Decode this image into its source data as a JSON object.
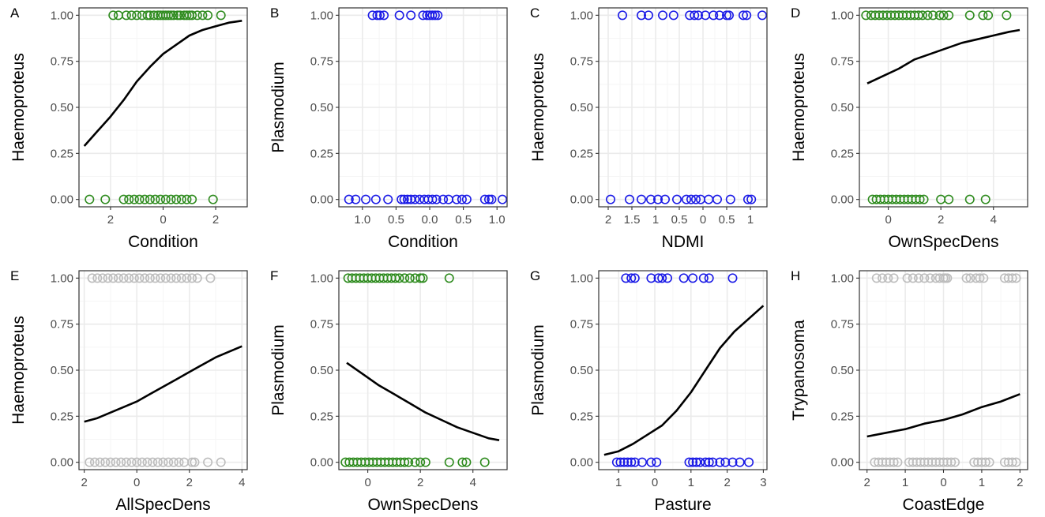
{
  "figure": {
    "colors": {
      "green": "#2e8b1e",
      "blue": "#1a1ae6",
      "grey": "#bdbdbd",
      "curve": "#000000",
      "grid_major": "#ebebeb",
      "grid_minor": "#f5f5f5",
      "border": "#333333"
    }
  },
  "chart_data": [
    {
      "panel": "A",
      "type": "scatter",
      "xlabel": "Condition",
      "ylabel": "Haemoproteus",
      "xlim": [
        -3.2,
        3.2
      ],
      "ylim": [
        -0.04,
        1.04
      ],
      "xticks": [
        -2,
        0,
        2
      ],
      "xtick_labels": [
        "2",
        "0",
        "2"
      ],
      "yticks": [
        0,
        0.25,
        0.5,
        0.75,
        1
      ],
      "ytick_labels": [
        "0.00",
        "0.25",
        "0.50",
        "0.75",
        "1.00"
      ],
      "point_color": "green",
      "points_y1": [
        -1.9,
        -1.7,
        -1.4,
        -1.2,
        -1.0,
        -0.8,
        -0.6,
        -0.5,
        -0.35,
        -0.2,
        -0.1,
        0.0,
        0.1,
        0.2,
        0.3,
        0.4,
        0.55,
        0.65,
        0.8,
        0.9,
        1.0,
        1.1,
        1.3,
        1.5,
        1.7,
        2.2
      ],
      "points_y0": [
        -2.8,
        -2.2,
        -1.5,
        -1.3,
        -1.1,
        -0.9,
        -0.7,
        -0.5,
        -0.3,
        -0.1,
        0.1,
        0.3,
        0.5,
        0.7,
        0.9,
        1.1,
        1.9
      ],
      "curve": {
        "x": [
          -3,
          -2.5,
          -2,
          -1.5,
          -1,
          -0.5,
          0,
          0.5,
          1,
          1.5,
          2,
          2.5,
          3
        ],
        "y": [
          0.29,
          0.37,
          0.45,
          0.54,
          0.64,
          0.72,
          0.79,
          0.84,
          0.89,
          0.92,
          0.94,
          0.96,
          0.97
        ]
      }
    },
    {
      "panel": "B",
      "type": "scatter",
      "xlabel": "Condition",
      "ylabel": "Plasmodium",
      "xlim": [
        -1.35,
        1.15
      ],
      "ylim": [
        -0.04,
        1.04
      ],
      "xticks": [
        -1,
        -0.5,
        0,
        0.5,
        1
      ],
      "xtick_labels": [
        "1.0",
        "0.5",
        "0.0",
        "0.5",
        "1.0"
      ],
      "yticks": [
        0,
        0.25,
        0.5,
        0.75,
        1
      ],
      "ytick_labels": [
        "0.00",
        "0.25",
        "0.50",
        "0.75",
        "1.00"
      ],
      "point_color": "blue",
      "points_y1": [
        -0.85,
        -0.78,
        -0.74,
        -0.68,
        -0.45,
        -0.28,
        -0.1,
        -0.04,
        0.0,
        0.04,
        0.08,
        0.12
      ],
      "points_y0": [
        -1.2,
        -1.1,
        -0.95,
        -0.8,
        -0.62,
        -0.42,
        -0.38,
        -0.33,
        -0.28,
        -0.22,
        -0.15,
        -0.08,
        -0.02,
        0.04,
        0.1,
        0.2,
        0.28,
        0.4,
        0.48,
        0.55,
        0.82,
        0.88,
        0.92,
        1.08
      ]
    },
    {
      "panel": "C",
      "type": "scatter",
      "xlabel": "NDMI",
      "ylabel": "Haemoproteus",
      "xlim": [
        -2.2,
        1.35
      ],
      "ylim": [
        -0.04,
        1.04
      ],
      "xticks": [
        -2,
        -1.5,
        -1,
        -0.5,
        0,
        0.5,
        1
      ],
      "xtick_labels": [
        "2",
        "1.5",
        "1",
        "0.5",
        "0",
        "0.5",
        "1"
      ],
      "yticks": [
        0,
        0.25,
        0.5,
        0.75,
        1
      ],
      "ytick_labels": [
        "0.00",
        "0.25",
        "0.50",
        "0.75",
        "1.00"
      ],
      "point_color": "blue",
      "points_y1": [
        -1.7,
        -1.3,
        -1.15,
        -0.85,
        -0.62,
        -0.28,
        -0.18,
        -0.1,
        0.05,
        0.22,
        0.35,
        0.5,
        0.55,
        0.85,
        0.92,
        1.25
      ],
      "points_y0": [
        -1.95,
        -1.55,
        -1.3,
        -1.1,
        -0.95,
        -0.8,
        -0.55,
        -0.35,
        -0.25,
        -0.15,
        -0.05,
        0.12,
        0.3,
        0.58,
        0.95,
        1.02
      ]
    },
    {
      "panel": "D",
      "type": "scatter",
      "xlabel": "OwnSpecDens",
      "ylabel": "Haemoproteus",
      "xlim": [
        -1.1,
        5.3
      ],
      "ylim": [
        -0.04,
        1.04
      ],
      "xticks": [
        0,
        2,
        4
      ],
      "xtick_labels": [
        "0",
        "2",
        "4"
      ],
      "yticks": [
        0,
        0.25,
        0.5,
        0.75,
        1
      ],
      "ytick_labels": [
        "0.00",
        "0.25",
        "0.50",
        "0.75",
        "1.00"
      ],
      "point_color": "green",
      "points_y1": [
        -0.85,
        -0.65,
        -0.5,
        -0.35,
        -0.2,
        -0.05,
        0.1,
        0.25,
        0.4,
        0.55,
        0.7,
        0.85,
        1.0,
        1.15,
        1.3,
        1.5,
        1.7,
        1.95,
        2.1,
        2.3,
        3.1,
        3.6,
        3.8,
        4.5
      ],
      "points_y0": [
        -0.6,
        -0.45,
        -0.3,
        -0.15,
        0.0,
        0.15,
        0.3,
        0.45,
        0.6,
        0.75,
        0.9,
        1.05,
        1.2,
        1.35,
        2.0,
        2.3,
        3.1,
        3.7
      ],
      "curve": {
        "x": [
          -0.8,
          -0.2,
          0.4,
          1.0,
          1.6,
          2.2,
          2.8,
          3.4,
          4.0,
          4.6,
          5.0
        ],
        "y": [
          0.63,
          0.67,
          0.71,
          0.76,
          0.79,
          0.82,
          0.85,
          0.87,
          0.89,
          0.91,
          0.92
        ]
      }
    },
    {
      "panel": "E",
      "type": "scatter",
      "xlabel": "AllSpecDens",
      "ylabel": "Haemoproteus",
      "xlim": [
        -2.2,
        4.2
      ],
      "ylim": [
        -0.04,
        1.04
      ],
      "xticks": [
        -2,
        0,
        2,
        4
      ],
      "xtick_labels": [
        "2",
        "0",
        "2",
        "4"
      ],
      "yticks": [
        0,
        0.25,
        0.5,
        0.75,
        1
      ],
      "ytick_labels": [
        "0.00",
        "0.25",
        "0.50",
        "0.75",
        "1.00"
      ],
      "point_color": "grey",
      "points_y1": [
        -1.7,
        -1.5,
        -1.3,
        -1.1,
        -0.9,
        -0.7,
        -0.5,
        -0.3,
        -0.1,
        0.1,
        0.3,
        0.5,
        0.7,
        0.9,
        1.1,
        1.3,
        1.5,
        1.7,
        1.9,
        2.1,
        2.3,
        2.8
      ],
      "points_y0": [
        -1.8,
        -1.6,
        -1.4,
        -1.2,
        -1.0,
        -0.8,
        -0.6,
        -0.4,
        -0.2,
        0.0,
        0.2,
        0.4,
        0.6,
        0.8,
        1.0,
        1.2,
        1.4,
        1.6,
        1.8,
        2.1,
        2.2,
        2.7,
        3.2
      ],
      "curve": {
        "x": [
          -2,
          -1.5,
          -1,
          -0.5,
          0,
          0.5,
          1,
          1.5,
          2,
          2.5,
          3,
          3.5,
          4
        ],
        "y": [
          0.22,
          0.24,
          0.27,
          0.3,
          0.33,
          0.37,
          0.41,
          0.45,
          0.49,
          0.53,
          0.57,
          0.6,
          0.63
        ]
      }
    },
    {
      "panel": "F",
      "type": "scatter",
      "xlabel": "OwnSpecDens",
      "ylabel": "Plasmodium",
      "xlim": [
        -1.1,
        5.3
      ],
      "ylim": [
        -0.04,
        1.04
      ],
      "xticks": [
        0,
        2,
        4
      ],
      "xtick_labels": [
        "0",
        "2",
        "4"
      ],
      "yticks": [
        0,
        0.25,
        0.5,
        0.75,
        1
      ],
      "ytick_labels": [
        "0.00",
        "0.25",
        "0.50",
        "0.75",
        "1.00"
      ],
      "point_color": "green",
      "points_y1": [
        -0.75,
        -0.6,
        -0.45,
        -0.3,
        -0.15,
        0.0,
        0.15,
        0.3,
        0.45,
        0.6,
        0.75,
        0.9,
        1.05,
        1.2,
        1.4,
        1.6,
        1.8,
        2.0,
        2.1,
        3.1
      ],
      "points_y0": [
        -0.85,
        -0.7,
        -0.55,
        -0.4,
        -0.25,
        -0.1,
        0.05,
        0.2,
        0.35,
        0.5,
        0.65,
        0.8,
        0.95,
        1.1,
        1.25,
        1.4,
        1.55,
        1.8,
        2.0,
        2.2,
        3.1,
        3.6,
        3.75,
        4.45
      ],
      "curve": {
        "x": [
          -0.8,
          -0.2,
          0.4,
          1.0,
          1.6,
          2.2,
          2.8,
          3.4,
          4.0,
          4.6,
          5.0
        ],
        "y": [
          0.54,
          0.48,
          0.42,
          0.37,
          0.32,
          0.27,
          0.23,
          0.19,
          0.16,
          0.13,
          0.12
        ]
      }
    },
    {
      "panel": "G",
      "type": "scatter",
      "xlabel": "Pasture",
      "ylabel": "Plasmodium",
      "xlim": [
        -1.55,
        3.1
      ],
      "ylim": [
        -0.04,
        1.04
      ],
      "xticks": [
        -1,
        0,
        1,
        2,
        3
      ],
      "xtick_labels": [
        "1",
        "0",
        "1",
        "2",
        "3"
      ],
      "yticks": [
        0,
        0.25,
        0.5,
        0.75,
        1
      ],
      "ytick_labels": [
        "0.00",
        "0.25",
        "0.50",
        "0.75",
        "1.00"
      ],
      "point_color": "blue",
      "points_y1": [
        -0.8,
        -0.65,
        -0.55,
        -0.1,
        0.1,
        0.2,
        0.35,
        0.8,
        1.05,
        1.35,
        1.5,
        2.15
      ],
      "points_y0": [
        -1.05,
        -0.95,
        -0.85,
        -0.75,
        -0.65,
        -0.55,
        -0.35,
        -0.1,
        0.05,
        0.95,
        1.05,
        1.15,
        1.25,
        1.4,
        1.5,
        1.6,
        1.8,
        1.95,
        2.15,
        2.35,
        2.6
      ],
      "curve": {
        "x": [
          -1.4,
          -1.0,
          -0.6,
          -0.2,
          0.2,
          0.6,
          1.0,
          1.4,
          1.8,
          2.2,
          2.6,
          3.0
        ],
        "y": [
          0.04,
          0.06,
          0.1,
          0.15,
          0.2,
          0.28,
          0.38,
          0.5,
          0.62,
          0.71,
          0.78,
          0.85
        ]
      }
    },
    {
      "panel": "H",
      "type": "scatter",
      "xlabel": "CoastEdge",
      "ylabel": "Trypanosoma",
      "xlim": [
        -2.2,
        2.2
      ],
      "ylim": [
        -0.04,
        1.04
      ],
      "xticks": [
        -2,
        -1,
        0,
        1,
        2
      ],
      "xtick_labels": [
        "2",
        "1",
        "0",
        "1",
        "2"
      ],
      "yticks": [
        0,
        0.25,
        0.5,
        0.75,
        1
      ],
      "ytick_labels": [
        "0.00",
        "0.25",
        "0.50",
        "0.75",
        "1.00"
      ],
      "point_color": "grey",
      "points_y1": [
        -1.75,
        -1.6,
        -1.45,
        -1.3,
        -0.95,
        -0.8,
        -0.65,
        -0.5,
        -0.35,
        -0.2,
        -0.1,
        0.0,
        0.05,
        0.1,
        0.6,
        0.7,
        0.85,
        0.95,
        1.05,
        1.6,
        1.7,
        1.8,
        1.9
      ],
      "points_y0": [
        -1.8,
        -1.7,
        -1.6,
        -1.5,
        -1.4,
        -1.3,
        -1.2,
        -0.9,
        -0.8,
        -0.7,
        -0.6,
        -0.5,
        -0.4,
        -0.3,
        -0.2,
        -0.1,
        0.0,
        0.1,
        0.2,
        0.3,
        0.8,
        0.9,
        1.0,
        1.1,
        1.2,
        1.6,
        1.7,
        1.8,
        1.9
      ],
      "curve": {
        "x": [
          -2,
          -1.5,
          -1,
          -0.5,
          0,
          0.5,
          1,
          1.5,
          2
        ],
        "y": [
          0.14,
          0.16,
          0.18,
          0.21,
          0.23,
          0.26,
          0.3,
          0.33,
          0.37
        ]
      }
    }
  ]
}
